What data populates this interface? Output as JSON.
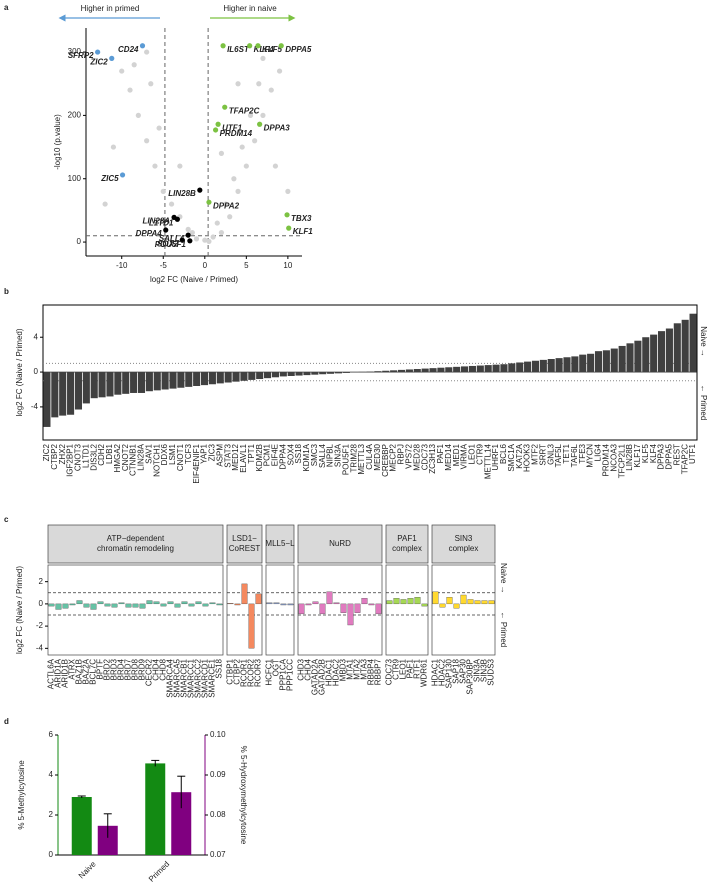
{
  "chart_data": [
    {
      "panel": "a",
      "type": "scatter",
      "xlabel": "log2 FC (Naive / Primed)",
      "ylabel": "-log10 (p.value)",
      "annotations": [
        "Higher in primed",
        "Higher in naive"
      ],
      "xlim": [
        -14.3,
        11.7
      ],
      "ylim": [
        -22,
        338
      ],
      "xticks": [
        -10,
        -5,
        0,
        5,
        10
      ],
      "yticks": [
        0,
        100,
        200,
        300
      ],
      "thresholds_x": [
        -4.8,
        0.4
      ],
      "threshold_y": 10,
      "series": [
        {
          "color": "#d3d3d3",
          "x": [
            -1,
            0,
            1,
            -3,
            -2,
            2,
            3,
            4,
            5,
            6,
            7,
            8,
            9,
            -5,
            -6,
            -7,
            -8,
            -9,
            -10,
            -4,
            3.5,
            4.5,
            5.5,
            6.5,
            2.5,
            -6.5,
            -5.5,
            -8.5,
            -11,
            -12,
            8.5,
            10,
            7,
            -3,
            1.5,
            -1.5,
            0.5,
            2,
            4,
            -7
          ],
          "y": [
            5,
            3,
            8,
            40,
            20,
            15,
            40,
            80,
            120,
            160,
            200,
            240,
            270,
            80,
            120,
            160,
            200,
            240,
            270,
            60,
            100,
            150,
            200,
            250,
            60,
            250,
            180,
            280,
            150,
            60,
            120,
            80,
            290,
            120,
            30,
            15,
            1,
            140,
            250,
            300
          ]
        },
        {
          "color": "#5b9bd5",
          "labels": [
            "SFRP2",
            "CD24",
            "ZIC2",
            "ZIC5"
          ],
          "x": [
            -12.9,
            -7.5,
            -11.2,
            -9.9
          ],
          "y": [
            300,
            310,
            290,
            106
          ]
        },
        {
          "color": "#7cc242",
          "labels": [
            "IL6ST",
            "KLF4",
            "KLF5",
            "DPPA5",
            "TFAP2C",
            "DPPA3",
            "UTF1",
            "PRDM14",
            "DPPA2",
            "TBX3",
            "KLF1"
          ],
          "x": [
            2.2,
            5.4,
            6.4,
            9.2,
            2.4,
            6.6,
            1.6,
            1.3,
            0.5,
            9.9,
            10.1
          ],
          "y": [
            310,
            310,
            310,
            310,
            213,
            186,
            186,
            177,
            63,
            43,
            22
          ]
        },
        {
          "color": "#000000",
          "labels": [
            "LIN28B",
            "LIN28A",
            "L1TD1",
            "DPPA4",
            "SALL4",
            "SOX2",
            "POU5F1"
          ],
          "x": [
            -0.6,
            -3.7,
            -3.3,
            -4.7,
            -2.0,
            -2.7,
            -1.8
          ],
          "y": [
            82,
            39,
            36,
            19,
            11,
            3,
            2
          ]
        }
      ]
    },
    {
      "panel": "b",
      "type": "bar",
      "ylabel": "log2 FC (Naive / Primed)",
      "side_labels": [
        "Naive →",
        "← Primed"
      ],
      "color": "#404040",
      "ylim": [
        -7.8,
        7.7
      ],
      "yticks": [
        -4,
        0,
        4
      ],
      "reference_lines": [
        -1,
        1
      ],
      "categories": [
        "ZIC2",
        "CTBP2",
        "ZHX2",
        "IGF2BP1",
        "CNOT3",
        "L1TD1",
        "DIS3L2",
        "CDH2",
        "LDB1",
        "HMGA2",
        "CNOT2",
        "CTNNB1",
        "LIN28A",
        "SAV1",
        "NOTCH1",
        "DDX6",
        "LSM1",
        "CNOT1",
        "TCF3",
        "EIF4ENIF1",
        "YAP1",
        "ZIC3",
        "ASPM",
        "STAT3",
        "MED12",
        "ELAVL1",
        "TPT1",
        "KDM2B",
        "PCM1",
        "EIF4E",
        "DPPA4",
        "SOX4",
        "SS18",
        "KDM1A",
        "SMC3",
        "SALL4",
        "NIPBL",
        "SIN3A",
        "POU5F1",
        "TRIM28",
        "METTL3",
        "CUL4A",
        "MED30",
        "CREBBP",
        "MECP2",
        "RBPJ",
        "VPS72",
        "MED28",
        "CDC73",
        "ZC3H13",
        "PAF1",
        "MED14",
        "MED1",
        "VIRMA",
        "LEO1",
        "CTR9",
        "METTL14",
        "UHRF1",
        "BCL6",
        "SMC1A",
        "KAT2A",
        "HOOK3",
        "MTF2",
        "SRRT",
        "GNL3",
        "TAF5L",
        "TET1",
        "TAF6L",
        "TFE3",
        "MYCN",
        "LIG4",
        "PRDM14",
        "NCOA3",
        "TFCP2L1",
        "LIN28B",
        "KLF17",
        "KLF5",
        "KLF4",
        "DPPA3",
        "DPPA5",
        "REST",
        "TFAP2C",
        "UTF1"
      ],
      "values": [
        -6.3,
        -5.2,
        -5.0,
        -4.9,
        -4.3,
        -3.6,
        -3.0,
        -2.9,
        -2.8,
        -2.6,
        -2.5,
        -2.4,
        -2.4,
        -2.2,
        -2.1,
        -2.0,
        -1.9,
        -1.8,
        -1.7,
        -1.6,
        -1.5,
        -1.4,
        -1.3,
        -1.2,
        -1.1,
        -1.0,
        -0.9,
        -0.8,
        -0.7,
        -0.6,
        -0.5,
        -0.45,
        -0.4,
        -0.35,
        -0.3,
        -0.25,
        -0.2,
        -0.15,
        -0.1,
        -0.05,
        0.02,
        0.05,
        0.1,
        0.15,
        0.2,
        0.25,
        0.3,
        0.35,
        0.4,
        0.45,
        0.5,
        0.55,
        0.6,
        0.65,
        0.7,
        0.75,
        0.8,
        0.85,
        0.9,
        1.0,
        1.1,
        1.2,
        1.3,
        1.4,
        1.5,
        1.6,
        1.7,
        1.8,
        2.0,
        2.1,
        2.4,
        2.5,
        2.7,
        3.0,
        3.3,
        3.6,
        4.0,
        4.3,
        4.7,
        5.0,
        5.6,
        6.0,
        6.7
      ]
    },
    {
      "panel": "c",
      "type": "faceted_bar",
      "ylabel": "log2 FC (Naive / Primed)",
      "side_labels": [
        "Naive →",
        "← Primed"
      ],
      "ylim": [
        -4.6,
        3.5
      ],
      "yticks": [
        -4,
        -2,
        0,
        2
      ],
      "reference_lines": [
        -1,
        1
      ],
      "facets": [
        {
          "title": [
            "ATP−dependent",
            "chromatin remodeling"
          ],
          "color": "#66c2a5",
          "categories": [
            "ACTL6A",
            "ARID1A",
            "ARID1B",
            "ATRX",
            "BAZ1B",
            "BAZ2A",
            "BCL7C",
            "BPTF",
            "BRD2",
            "BRD3",
            "BRD4",
            "BRD7",
            "BRD8",
            "BRD9",
            "CECR2",
            "CHD4",
            "CHD8",
            "SMARCA4",
            "SMARCA5",
            "SMARCB1",
            "SMARCC1",
            "SMARCC2",
            "SMARCD1",
            "SMARCE1",
            "SS18"
          ],
          "values": [
            -0.2,
            -0.5,
            -0.4,
            -0.1,
            0.3,
            -0.3,
            -0.5,
            0.2,
            -0.2,
            -0.3,
            0.1,
            -0.3,
            -0.3,
            -0.4,
            0.3,
            0.2,
            -0.2,
            0.2,
            -0.3,
            0.2,
            -0.2,
            0.2,
            -0.2,
            0.1,
            -0.1
          ]
        },
        {
          "title": [
            "LSD1−",
            "CoREST"
          ],
          "color": "#f4895f",
          "categories": [
            "CTBP1",
            "CTBP2",
            "RCOR1",
            "RCOR2",
            "RCOR3"
          ],
          "values": [
            0.05,
            -0.1,
            1.8,
            -4.0,
            0.9
          ]
        },
        {
          "title": [
            "MLL5−L"
          ],
          "color": "#8da0cb",
          "categories": [
            "HCFC1",
            "OGT",
            "PPP1CA",
            "PPP1CC"
          ],
          "values": [
            0.1,
            0.1,
            -0.1,
            -0.1
          ]
        },
        {
          "title": [
            "NuRD"
          ],
          "color": "#e07bbf",
          "categories": [
            "CHD3",
            "CHD4",
            "GATAD2A",
            "GATAD2B",
            "HDAC1",
            "HDAC2",
            "MBD3",
            "MTA1",
            "MTA2",
            "MTA3",
            "RBBP4",
            "RBBP7"
          ],
          "values": [
            -0.9,
            -0.1,
            0.2,
            -0.9,
            1.1,
            0.1,
            -0.8,
            -1.9,
            -0.8,
            0.5,
            -0.1,
            -0.9
          ]
        },
        {
          "title": [
            "PAF1",
            "complex"
          ],
          "color": "#a6d854",
          "categories": [
            "CDC73",
            "CTR9",
            "LEO1",
            "PAF1",
            "RTF1",
            "WDR61"
          ],
          "values": [
            0.3,
            0.5,
            0.4,
            0.5,
            0.6,
            -0.2
          ]
        },
        {
          "title": [
            "SIN3",
            "complex"
          ],
          "color": "#ffd92f",
          "categories": [
            "HDAC1",
            "HDAC2",
            "SAP130",
            "SAP18",
            "SAP30",
            "SAP30BP",
            "SIN3A",
            "SIN3B",
            "SUDS3"
          ],
          "values": [
            1.1,
            -0.3,
            0.6,
            -0.4,
            0.8,
            0.4,
            0.3,
            0.3,
            0.3
          ]
        }
      ]
    },
    {
      "panel": "d",
      "type": "dual_axis_bar",
      "categories": [
        "Naive",
        "Primed"
      ],
      "ylabel": "% 5-Methylcytosine",
      "y2label": "% 5-Hydroxymethylcytosine",
      "ylim": [
        0,
        6
      ],
      "yticks": [
        0,
        2,
        4,
        6
      ],
      "y2lim": [
        0.07,
        0.1
      ],
      "y2ticks": [
        0.07,
        0.08,
        0.09,
        {
          "value": 0.1,
          "label": "0.10"
        }
      ],
      "series": [
        {
          "color": "#138a13",
          "values": [
            2.9,
            4.58
          ],
          "errors": [
            0.05,
            0.15
          ]
        },
        {
          "color": "#800080",
          "axis": "y2",
          "values": [
            0.0773,
            0.0857
          ],
          "errors": [
            0.003,
            0.004
          ]
        }
      ]
    }
  ]
}
